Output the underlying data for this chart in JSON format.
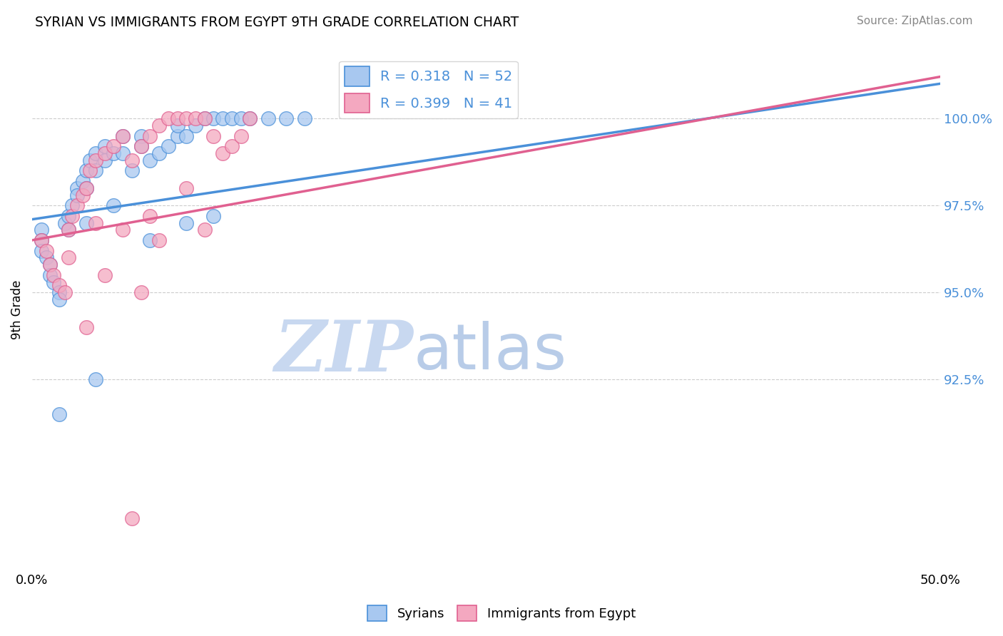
{
  "title": "SYRIAN VS IMMIGRANTS FROM EGYPT 9TH GRADE CORRELATION CHART",
  "source": "Source: ZipAtlas.com",
  "ylabel": "9th Grade",
  "ytick_vals": [
    92.5,
    95.0,
    97.5,
    100.0
  ],
  "xrange": [
    0.0,
    50.0
  ],
  "yrange": [
    87.0,
    102.0
  ],
  "legend_r1": "R = 0.318",
  "legend_n1": "N = 52",
  "legend_r2": "R = 0.399",
  "legend_n2": "N = 41",
  "color_blue": "#A8C8F0",
  "color_pink": "#F4A8C0",
  "color_blue_line": "#4A90D9",
  "color_pink_line": "#E06090",
  "watermark_zip": "ZIP",
  "watermark_atlas": "atlas",
  "watermark_color": "#C8D8F0",
  "blue_scatter_x": [
    0.5,
    0.5,
    0.5,
    0.8,
    1.0,
    1.0,
    1.2,
    1.5,
    1.5,
    1.8,
    2.0,
    2.0,
    2.2,
    2.5,
    2.5,
    2.8,
    3.0,
    3.0,
    3.2,
    3.5,
    3.5,
    4.0,
    4.0,
    4.5,
    5.0,
    5.0,
    5.5,
    6.0,
    6.0,
    6.5,
    7.0,
    7.5,
    8.0,
    8.0,
    8.5,
    9.0,
    9.5,
    10.0,
    10.5,
    11.0,
    11.5,
    12.0,
    13.0,
    14.0,
    15.0,
    3.0,
    4.5,
    6.5,
    8.5,
    10.0,
    1.5,
    3.5
  ],
  "blue_scatter_y": [
    96.8,
    96.5,
    96.2,
    96.0,
    95.8,
    95.5,
    95.3,
    95.0,
    94.8,
    97.0,
    97.2,
    96.8,
    97.5,
    98.0,
    97.8,
    98.2,
    98.5,
    98.0,
    98.8,
    99.0,
    98.5,
    98.8,
    99.2,
    99.0,
    99.5,
    99.0,
    98.5,
    99.5,
    99.2,
    98.8,
    99.0,
    99.2,
    99.5,
    99.8,
    99.5,
    99.8,
    100.0,
    100.0,
    100.0,
    100.0,
    100.0,
    100.0,
    100.0,
    100.0,
    100.0,
    97.0,
    97.5,
    96.5,
    97.0,
    97.2,
    91.5,
    92.5
  ],
  "pink_scatter_x": [
    0.5,
    0.8,
    1.0,
    1.2,
    1.5,
    1.8,
    2.0,
    2.2,
    2.5,
    2.8,
    3.0,
    3.2,
    3.5,
    4.0,
    4.5,
    5.0,
    5.5,
    6.0,
    6.5,
    7.0,
    7.5,
    8.0,
    8.5,
    9.0,
    9.5,
    10.0,
    10.5,
    11.0,
    11.5,
    12.0,
    2.0,
    3.5,
    5.0,
    6.5,
    8.5,
    4.0,
    7.0,
    9.5,
    3.0,
    6.0,
    5.5
  ],
  "pink_scatter_y": [
    96.5,
    96.2,
    95.8,
    95.5,
    95.2,
    95.0,
    96.8,
    97.2,
    97.5,
    97.8,
    98.0,
    98.5,
    98.8,
    99.0,
    99.2,
    99.5,
    98.8,
    99.2,
    99.5,
    99.8,
    100.0,
    100.0,
    100.0,
    100.0,
    100.0,
    99.5,
    99.0,
    99.2,
    99.5,
    100.0,
    96.0,
    97.0,
    96.8,
    97.2,
    98.0,
    95.5,
    96.5,
    96.8,
    94.0,
    95.0,
    88.5
  ]
}
